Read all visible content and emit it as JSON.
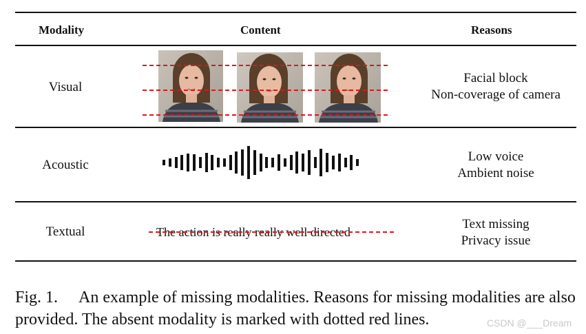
{
  "table": {
    "headers": {
      "modality": "Modality",
      "content": "Content",
      "reasons": "Reasons"
    },
    "rows": [
      {
        "modality": "Visual",
        "reasons": [
          "Facial block",
          "Non-coverage of camera"
        ]
      },
      {
        "modality": "Acoustic",
        "reasons": [
          "Low voice",
          "Ambient noise"
        ]
      },
      {
        "modality": "Textual",
        "content_text": "The action is really really well directed",
        "reasons": [
          "Text missing",
          "Privacy issue"
        ]
      }
    ]
  },
  "waveform_levels": [
    0.15,
    0.25,
    0.35,
    0.45,
    0.55,
    0.5,
    0.35,
    0.6,
    0.45,
    0.3,
    0.25,
    0.45,
    0.65,
    0.8,
    1.0,
    0.75,
    0.55,
    0.35,
    0.3,
    0.5,
    0.25,
    0.45,
    0.65,
    0.55,
    0.75,
    0.35,
    0.85,
    0.6,
    0.4,
    0.55,
    0.3,
    0.45,
    0.2
  ],
  "caption": {
    "label": "Fig. 1.",
    "text": "An example of missing modalities. Reasons for missing modalities are also provided. The absent modality is marked with dotted red lines."
  },
  "watermark": "CSDN @___Dream",
  "colors": {
    "dash": "#e0141e",
    "rule": "#111111"
  }
}
